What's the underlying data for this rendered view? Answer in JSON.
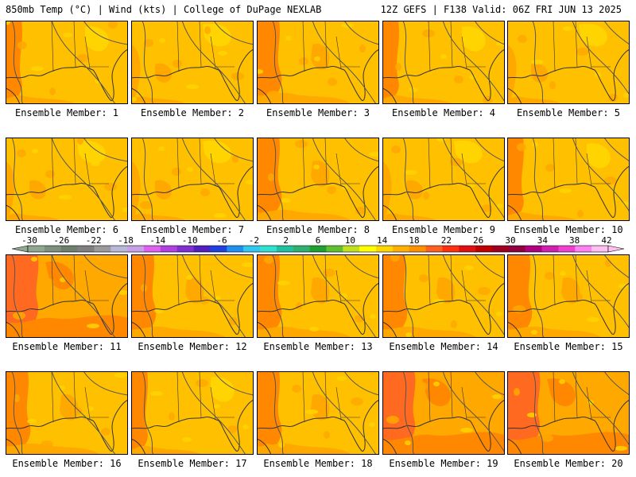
{
  "header": {
    "left_title": "850mb Temp (°C) | Wind (kts) | College of DuPage NEXLAB",
    "right_title": "12Z GEFS | F138 Valid: 06Z FRI JUN 13 2025"
  },
  "members": [
    {
      "label": "Ensemble Member: 1",
      "tone": "mixed"
    },
    {
      "label": "Ensemble Member: 2",
      "tone": "cool"
    },
    {
      "label": "Ensemble Member: 3",
      "tone": "warm"
    },
    {
      "label": "Ensemble Member: 4",
      "tone": "mixed"
    },
    {
      "label": "Ensemble Member: 5",
      "tone": "cool"
    },
    {
      "label": "Ensemble Member: 6",
      "tone": "cool"
    },
    {
      "label": "Ensemble Member: 7",
      "tone": "cool"
    },
    {
      "label": "Ensemble Member: 8",
      "tone": "warm"
    },
    {
      "label": "Ensemble Member: 9",
      "tone": "cool"
    },
    {
      "label": "Ensemble Member: 10",
      "tone": "mixed"
    },
    {
      "label": "Ensemble Member: 11",
      "tone": "hot"
    },
    {
      "label": "Ensemble Member: 12",
      "tone": "warm"
    },
    {
      "label": "Ensemble Member: 13",
      "tone": "warm"
    },
    {
      "label": "Ensemble Member: 14",
      "tone": "warm"
    },
    {
      "label": "Ensemble Member: 15",
      "tone": "warm"
    },
    {
      "label": "Ensemble Member: 16",
      "tone": "warm"
    },
    {
      "label": "Ensemble Member: 17",
      "tone": "mixed"
    },
    {
      "label": "Ensemble Member: 18",
      "tone": "warm"
    },
    {
      "label": "Ensemble Member: 19",
      "tone": "hot"
    },
    {
      "label": "Ensemble Member: 20",
      "tone": "hot"
    }
  ],
  "colorbar": {
    "tick_labels": [
      "-30",
      "-26",
      "-22",
      "-18",
      "-14",
      "-10",
      "-6",
      "-2",
      "2",
      "6",
      "10",
      "14",
      "18",
      "22",
      "26",
      "30",
      "34",
      "38",
      "42"
    ],
    "colors": [
      "#8fa88f",
      "#7f8f7f",
      "#6f7f6f",
      "#7f7f7f",
      "#9a9a9a",
      "#b8b8d8",
      "#c8a0e8",
      "#e060f0",
      "#b040e0",
      "#8030d0",
      "#5020c0",
      "#2040e0",
      "#2090f0",
      "#30c8f0",
      "#30e0d0",
      "#20c0a0",
      "#30b070",
      "#20a030",
      "#60c030",
      "#c0e020",
      "#ffff00",
      "#ffd700",
      "#ffb000",
      "#ff9000",
      "#ff6020",
      "#ff3010",
      "#e01010",
      "#c00000",
      "#a00020",
      "#900040",
      "#b00080",
      "#d020b0",
      "#f040d0",
      "#ff80f0",
      "#ffc0f0"
    ],
    "palette": {
      "light": "#ffc000",
      "mid": "#ffa800",
      "dark": "#ff8800",
      "hot": "#ff6a20",
      "lighter": "#ffd400",
      "coast": "#333333",
      "contour": "#555555"
    }
  }
}
